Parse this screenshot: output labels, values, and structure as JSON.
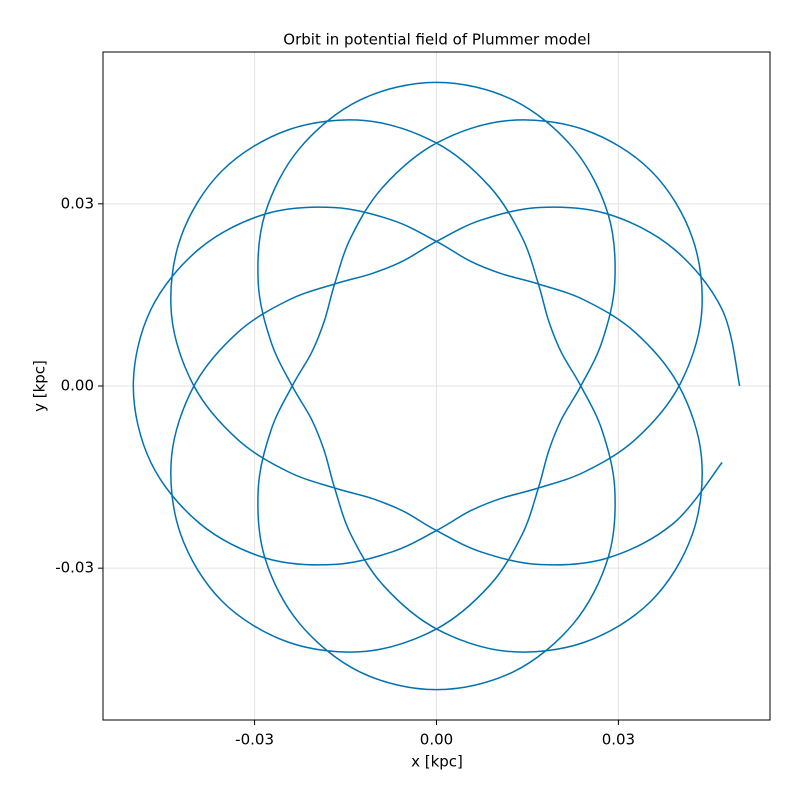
{
  "chart_data": {
    "type": "line",
    "title": "Orbit in potential field of Plummer model",
    "x_label": "x [kpc]",
    "y_label": "y [kpc]",
    "color": "#0072b2",
    "grid": true,
    "xlim": [
      -0.055,
      0.055
    ],
    "ylim": [
      -0.055,
      0.055
    ],
    "xticks": [
      -0.03,
      {
        "value": 0,
        "label": "0.00"
      },
      0.03
    ],
    "yticks": [
      -0.03,
      {
        "value": 0,
        "label": "0.00"
      },
      0.03
    ],
    "x": [
      0.05,
      0.0471,
      0.0391,
      0.0283,
      0.017,
      0.0073,
      0,
      -0.0055,
      -0.0107,
      -0.0168,
      -0.0245,
      -0.0328,
      -0.04,
      -0.0437,
      -0.0422,
      -0.0354,
      -0.0244,
      -0.0117,
      0,
      0.0088,
      0.0141,
      0.0168,
      0.0185,
      0.0206,
      0.0238,
      0.0273,
      0.0294,
      0.0283,
      0.0226,
      0.0126,
      0,
      -0.0126,
      -0.0226,
      -0.0283,
      -0.0294,
      -0.0273,
      -0.0238,
      -0.0206,
      -0.0185,
      -0.0168,
      -0.0141,
      -0.0088,
      0,
      0.0117,
      0.0244,
      0.0354,
      0.0422,
      0.0437,
      0.04,
      0.0328,
      0.0245,
      0.0168,
      0.0107,
      0.0055,
      0,
      -0.0073,
      -0.017,
      -0.0283,
      -0.0391,
      -0.0471,
      -0.05,
      -0.0471,
      -0.0391,
      -0.0283,
      -0.017,
      -0.0073,
      0,
      0.0055,
      0.0107,
      0.0168,
      0.0245,
      0.0328,
      0.04,
      0.0437,
      0.0422,
      0.0354,
      0.0244,
      0.0117,
      0,
      -0.0088,
      -0.0141,
      -0.0168,
      -0.0185,
      -0.0206,
      -0.0238,
      -0.0273,
      -0.0294,
      -0.0283,
      -0.0226,
      -0.0126,
      0,
      0.0126,
      0.0226,
      0.0283,
      0.0294,
      0.0273,
      0.0238,
      0.0206,
      0.0185,
      0.0168,
      0.0141,
      0.0088,
      0,
      -0.0117,
      -0.0244,
      -0.0354,
      -0.0422,
      -0.0437,
      -0.04,
      -0.0328,
      -0.0245,
      -0.0168,
      -0.0107,
      -0.0055,
      0,
      0.0073,
      0.017,
      0.0283,
      0.0391,
      0.0471
    ],
    "values": [
      0,
      0.0126,
      0.0226,
      0.0283,
      0.0294,
      0.0273,
      0.0238,
      0.0206,
      0.0185,
      0.0168,
      0.0141,
      0.0088,
      0,
      -0.0117,
      -0.0244,
      -0.0354,
      -0.0422,
      -0.0437,
      -0.04,
      -0.0328,
      -0.0245,
      -0.0168,
      -0.0107,
      -0.0055,
      0,
      0.0073,
      0.017,
      0.0283,
      0.0391,
      0.0471,
      0.05,
      0.0471,
      0.0391,
      0.0283,
      0.017,
      0.0073,
      0,
      -0.0055,
      -0.0107,
      -0.0168,
      -0.0245,
      -0.0328,
      -0.04,
      -0.0437,
      -0.0422,
      -0.0354,
      -0.0244,
      -0.0117,
      0,
      0.0088,
      0.0141,
      0.0168,
      0.0185,
      0.0206,
      0.0238,
      0.0273,
      0.0294,
      0.0283,
      0.0226,
      0.0126,
      0,
      -0.0126,
      -0.0226,
      -0.0283,
      -0.0294,
      -0.0273,
      -0.0238,
      -0.0206,
      -0.0185,
      -0.0168,
      -0.0141,
      -0.0088,
      0,
      0.0117,
      0.0244,
      0.0354,
      0.0422,
      0.0437,
      0.04,
      0.0328,
      0.0245,
      0.0168,
      0.0107,
      0.0055,
      0,
      -0.0073,
      -0.017,
      -0.0283,
      -0.0391,
      -0.0471,
      -0.05,
      -0.0471,
      -0.0391,
      -0.0283,
      -0.017,
      -0.0073,
      0,
      0.0055,
      0.0107,
      0.0168,
      0.0245,
      0.0328,
      0.04,
      0.0437,
      0.0422,
      0.0354,
      0.0244,
      0.0117,
      0,
      -0.0088,
      -0.0141,
      -0.0168,
      -0.0185,
      -0.0206,
      -0.0238,
      -0.0273,
      -0.0294,
      -0.0283,
      -0.0226,
      -0.0126
    ]
  }
}
